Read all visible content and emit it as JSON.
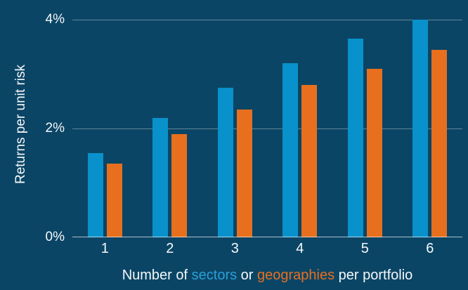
{
  "chart_data": {
    "type": "bar",
    "categories": [
      "1",
      "2",
      "3",
      "4",
      "5",
      "6"
    ],
    "series": [
      {
        "name": "sectors",
        "color": "#0991CB",
        "values": [
          1.55,
          2.2,
          2.75,
          3.2,
          3.65,
          4.0
        ]
      },
      {
        "name": "geographies",
        "color": "#E76F1E",
        "values": [
          1.35,
          1.9,
          2.35,
          2.8,
          3.1,
          3.45
        ]
      }
    ],
    "title": "",
    "ylabel": "Returns per unit risk",
    "xlabel": "Number of sectors or geographies per portfolio",
    "xlabel_parts": [
      {
        "text": "Number of ",
        "color": "#F4F8FA"
      },
      {
        "text": "sectors",
        "color": "#2B9FD8"
      },
      {
        "text": " or ",
        "color": "#F4F8FA"
      },
      {
        "text": "geographies",
        "color": "#E76F1E"
      },
      {
        "text": " per portfolio",
        "color": "#F4F8FA"
      }
    ],
    "ylim": [
      0,
      4
    ],
    "yticks": [
      {
        "value": 0,
        "label": "0%"
      },
      {
        "value": 2,
        "label": "2%"
      },
      {
        "value": 4,
        "label": "4%"
      }
    ],
    "grid": true,
    "legend_position": "none",
    "colors": {
      "background": "#0B4565",
      "blue_bar": "#0991CB",
      "orange_bar": "#E76F1E",
      "text": "#F4F8FA"
    }
  }
}
